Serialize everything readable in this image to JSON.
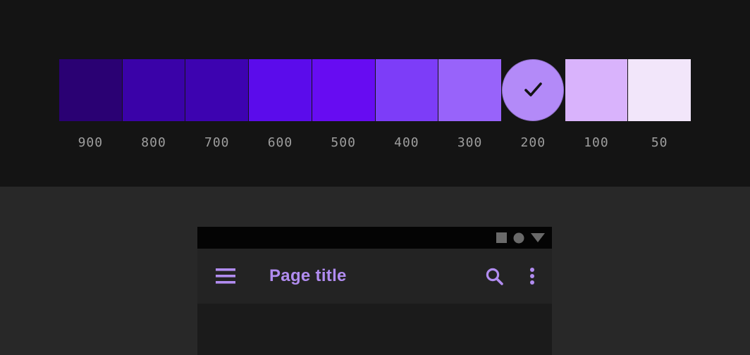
{
  "palette": {
    "selected_value": "200",
    "check_icon": "checkmark",
    "swatches": [
      {
        "label": "900",
        "color": "#2a0173",
        "selected": false
      },
      {
        "label": "800",
        "color": "#3a02a8",
        "selected": false
      },
      {
        "label": "700",
        "color": "#3d03b0",
        "selected": false
      },
      {
        "label": "600",
        "color": "#5b0ceb",
        "selected": false
      },
      {
        "label": "500",
        "color": "#670cf2",
        "selected": false
      },
      {
        "label": "400",
        "color": "#7d3df8",
        "selected": false
      },
      {
        "label": "300",
        "color": "#9863fa",
        "selected": false
      },
      {
        "label": "200",
        "color": "#b38af8",
        "selected": true
      },
      {
        "label": "100",
        "color": "#d9b3fc",
        "selected": false
      },
      {
        "label": "50",
        "color": "#f2e6fa",
        "selected": false
      }
    ]
  },
  "preview": {
    "status_bar": {
      "icons": [
        "square",
        "circle",
        "triangle-down"
      ],
      "icon_color": "#696969",
      "background": "#040404"
    },
    "app_bar": {
      "title": "Page title",
      "accent_color": "#b18cf0",
      "background": "#232323",
      "icons": [
        "menu",
        "search",
        "overflow"
      ]
    },
    "content_background": "#1b1b1b"
  },
  "colors": {
    "palette_background": "#141414",
    "preview_background": "#282828",
    "label_gray": "#9e9e9e",
    "check_color": "#141414"
  }
}
